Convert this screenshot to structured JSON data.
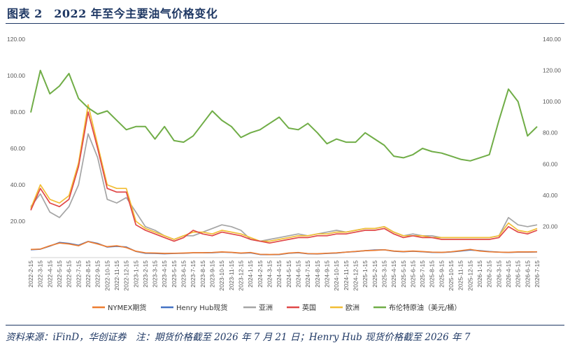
{
  "title": "图表 2　2022 年至今主要油气价格变化",
  "footnote": "资料来源：iFinD，华创证券　注：期货价格截至 2026 年 7 月 21 日；Henry Hub 现货价格截至 2026 年 7",
  "colors": {
    "nymex": "#ed7d31",
    "henryhub": "#4472c4",
    "asia": "#a5a5a5",
    "uk": "#e04848",
    "europe": "#f2be34",
    "brent": "#70ad47",
    "title": "#1f3864"
  },
  "chart_data": {
    "type": "line",
    "left_axis": {
      "min": 0,
      "max": 120,
      "ticks": [
        "",
        "20.00",
        "40.00",
        "60.00",
        "80.00",
        "100.00",
        "120.00"
      ]
    },
    "right_axis": {
      "min": 0,
      "max": 140,
      "ticks": [
        "",
        "20.00",
        "40.00",
        "60.00",
        "80.00",
        "100.00",
        "120.00",
        "140.00"
      ]
    },
    "x_labels": [
      "2022-2-15",
      "2022-3-15",
      "2022-4-15",
      "2022-5-15",
      "2022-6-15",
      "2022-7-15",
      "2022-8-15",
      "2022-9-15",
      "2022-10-15",
      "2022-11-15",
      "2022-12-15",
      "2023-1-15",
      "2023-2-15",
      "2023-3-15",
      "2023-4-15",
      "2023-5-15",
      "2023-6-15",
      "2023-7-15",
      "2023-8-15",
      "2023-9-15",
      "2023-10-15",
      "2023-11-15",
      "2023-12-15",
      "2024-1-15",
      "2024-2-15",
      "2024-3-15",
      "2024-4-15",
      "2024-5-15",
      "2024-6-15",
      "2024-7-15",
      "2024-8-15",
      "2024-9-15",
      "2024-10-15",
      "2024-11-15",
      "2024-12-15",
      "2025-1-15",
      "2025-2-15",
      "2025-3-15",
      "2025-4-15",
      "2025-5-15",
      "2025-6-15",
      "2025-7-15",
      "2025-8-15",
      "2025-9-15",
      "2025-10-15",
      "2025-11-15",
      "2025-12-15",
      "2026-1-15",
      "2026-2-15",
      "2026-3-15",
      "2026-4-15",
      "2026-5-15",
      "2026-6-15",
      "2026-7-15"
    ],
    "grid": false,
    "legend_position": "bottom",
    "series": [
      {
        "name": "NYMEX期货",
        "key": "nymex",
        "axis": "left",
        "values": [
          4.5,
          4.7,
          6.5,
          8.0,
          7.5,
          6.5,
          8.8,
          7.5,
          6.0,
          6.5,
          5.5,
          3.5,
          2.6,
          2.5,
          2.3,
          2.4,
          2.5,
          2.7,
          2.7,
          2.8,
          3.1,
          2.9,
          2.5,
          2.8,
          1.8,
          1.7,
          1.8,
          2.5,
          2.8,
          2.2,
          2.1,
          2.4,
          2.6,
          3.0,
          3.4,
          3.8,
          4.0,
          4.3,
          3.6,
          3.3,
          3.6,
          3.3,
          3.0,
          2.9,
          3.2,
          3.8,
          4.5,
          3.6,
          3.2,
          3.0,
          2.9,
          3.1,
          3.1,
          3.2
        ]
      },
      {
        "name": "Henry Hub现货",
        "key": "henryhub",
        "axis": "left",
        "values": [
          4.3,
          4.6,
          6.3,
          8.3,
          7.8,
          6.8,
          8.9,
          7.8,
          5.8,
          6.2,
          5.8,
          3.4,
          2.4,
          2.3,
          2.1,
          2.3,
          2.4,
          2.6,
          2.6,
          2.7,
          3.0,
          2.8,
          2.4,
          2.6,
          1.7,
          1.6,
          1.7,
          2.4,
          2.7,
          2.1,
          2.0,
          2.3,
          2.5,
          3.0,
          3.3,
          3.8,
          4.2,
          4.3,
          3.5,
          3.2,
          3.5,
          3.2,
          2.9,
          2.8,
          3.1,
          3.6,
          4.2,
          3.8,
          3.3,
          3.0,
          2.8,
          3.0,
          3.0,
          3.1
        ]
      },
      {
        "name": "亚洲",
        "key": "asia",
        "axis": "left",
        "values": [
          28,
          35,
          25,
          22,
          28,
          40,
          68,
          55,
          32,
          30,
          33,
          25,
          17,
          15,
          12,
          10,
          12,
          12,
          14,
          16,
          18,
          17,
          15,
          10,
          9,
          10,
          11,
          12,
          13,
          12,
          13,
          14,
          15,
          14,
          15,
          16,
          16,
          17,
          14,
          12,
          13,
          12,
          12,
          11,
          11,
          11,
          11,
          11,
          11,
          12,
          22,
          18,
          17,
          18
        ]
      },
      {
        "name": "英国",
        "key": "uk",
        "axis": "left",
        "values": [
          26,
          38,
          30,
          28,
          32,
          50,
          80,
          60,
          38,
          36,
          36,
          18,
          15,
          13,
          11,
          9,
          11,
          15,
          13,
          12,
          14,
          13,
          12,
          10,
          9,
          8,
          9,
          10,
          11,
          11,
          12,
          12,
          13,
          13,
          14,
          15,
          15,
          16,
          13,
          11,
          12,
          11,
          11,
          10,
          10,
          10,
          10,
          10,
          10,
          11,
          17,
          14,
          13,
          15
        ]
      },
      {
        "name": "欧洲",
        "key": "europe",
        "axis": "left",
        "values": [
          27,
          40,
          32,
          30,
          34,
          52,
          84,
          62,
          40,
          38,
          38,
          20,
          16,
          14,
          12,
          10,
          12,
          14,
          14,
          13,
          15,
          14,
          13,
          11,
          9,
          9,
          10,
          11,
          12,
          12,
          13,
          13,
          14,
          14,
          15,
          16,
          16,
          17,
          14,
          12,
          12,
          12,
          11,
          11,
          11,
          11,
          11,
          11,
          11,
          12,
          19,
          15,
          14,
          16
        ]
      },
      {
        "name": "布伦特原油（美元/桶）",
        "key": "brent",
        "axis": "right",
        "values": [
          93,
          120,
          105,
          110,
          118,
          102,
          96,
          92,
          94,
          88,
          82,
          84,
          84,
          76,
          84,
          75,
          74,
          78,
          86,
          94,
          88,
          84,
          77,
          80,
          82,
          86,
          90,
          83,
          82,
          86,
          80,
          73,
          76,
          74,
          74,
          80,
          76,
          72,
          65,
          64,
          66,
          70,
          68,
          67,
          65,
          63,
          62,
          64,
          66,
          88,
          108,
          100,
          78,
          84
        ]
      }
    ]
  }
}
